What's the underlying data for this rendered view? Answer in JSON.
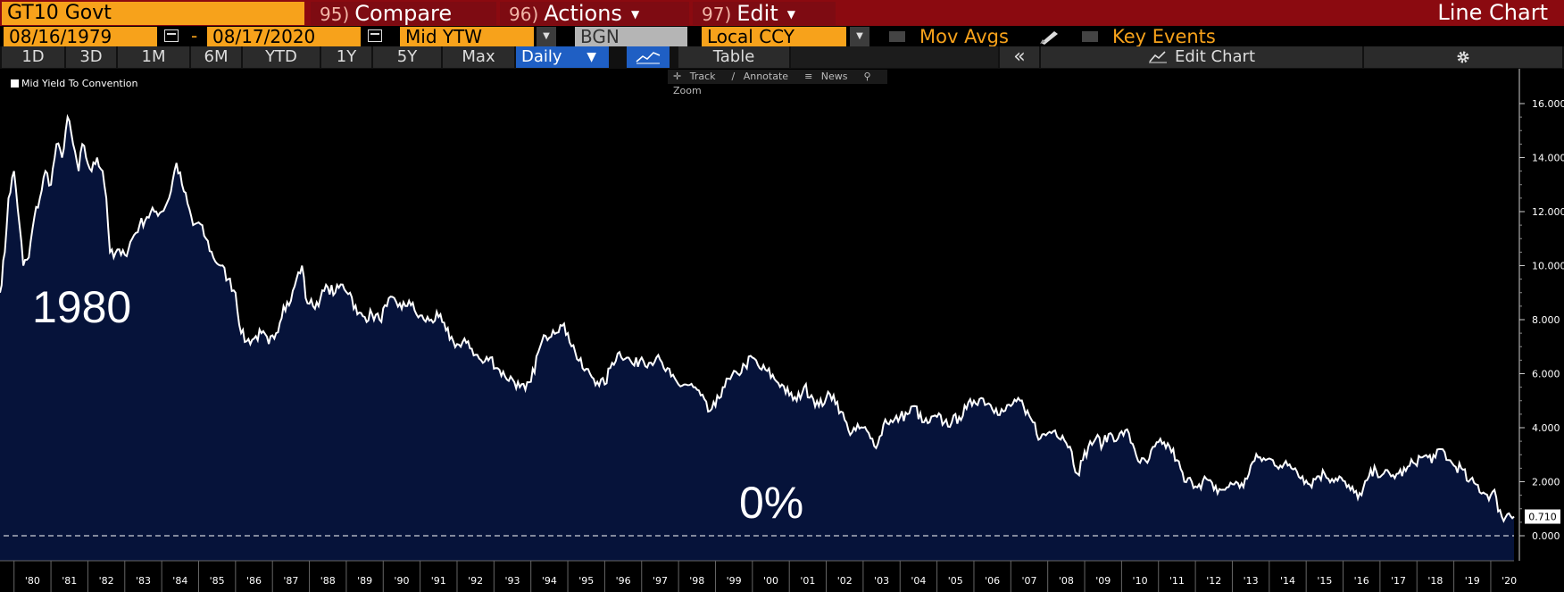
{
  "header": {
    "ticker": "GT10 Govt",
    "compare_num": "95)",
    "compare_label": "Compare",
    "actions_num": "96)",
    "actions_label": "Actions",
    "edit_num": "97)",
    "edit_label": "Edit",
    "chart_type": "Line Chart"
  },
  "settings": {
    "start_date": "08/16/1979",
    "date_sep": "-",
    "end_date": "08/17/2020",
    "field": "Mid YTW",
    "source": "BGN",
    "currency": "Local CCY",
    "mov_avgs": "Mov Avgs",
    "key_events": "Key Events"
  },
  "ranges": [
    "1D",
    "3D",
    "1M",
    "6M",
    "YTD",
    "1Y",
    "5Y",
    "Max"
  ],
  "periodicity": "Daily",
  "table_label": "Table",
  "collapse_icon": "«",
  "edit_chart_label": "Edit Chart",
  "tools": {
    "track": "Track",
    "annotate": "Annotate",
    "news": "News",
    "zoom": "Zoom"
  },
  "icons": {
    "calendar": "calendar-icon",
    "dropdown": "chevron-down-icon",
    "chart_style": "line-chart-icon",
    "gear": "gear-icon",
    "pencil": "pencil-icon"
  },
  "colors": {
    "orange": "#f7a21b",
    "header_red": "#8b0a10",
    "area_fill": "#06133a",
    "line": "#ffffff",
    "selected_blue": "#1f5fc4"
  },
  "overlay": {
    "year_text": "1980",
    "zero_text": "0%"
  },
  "chart_data": {
    "type": "area",
    "series_name": "Mid Yield To Convention",
    "xlabel": "",
    "ylabel": "",
    "x_range": [
      1979.62,
      2020.63
    ],
    "ylim": [
      -1.0,
      16.6
    ],
    "y_ticks": [
      "0.000",
      "2.000",
      "4.000",
      "6.000",
      "8.000",
      "10.000",
      "12.000",
      "14.000",
      "16.000"
    ],
    "x_ticks": [
      "'80",
      "'81",
      "'82",
      "'83",
      "'84",
      "'85",
      "'86",
      "'87",
      "'88",
      "'89",
      "'90",
      "'91",
      "'92",
      "'93",
      "'94",
      "'95",
      "'96",
      "'97",
      "'98",
      "'99",
      "'00",
      "'01",
      "'02",
      "'03",
      "'04",
      "'05",
      "'06",
      "'07",
      "'08",
      "'09",
      "'10",
      "'11",
      "'12",
      "'13",
      "'14",
      "'15",
      "'16",
      "'17",
      "'18",
      "'19",
      "'20"
    ],
    "last_value": "0.710",
    "reference_line": 0,
    "x": [
      1979.62,
      1979.75,
      1979.85,
      1980.0,
      1980.15,
      1980.25,
      1980.4,
      1980.55,
      1980.7,
      1980.85,
      1981.0,
      1981.15,
      1981.3,
      1981.45,
      1981.6,
      1981.75,
      1981.85,
      1981.95,
      1982.1,
      1982.25,
      1982.4,
      1982.5,
      1982.6,
      1982.7,
      1982.8,
      1982.9,
      1983.0,
      1983.2,
      1983.4,
      1983.6,
      1983.8,
      1984.0,
      1984.2,
      1984.4,
      1984.55,
      1984.7,
      1984.85,
      1985.0,
      1985.2,
      1985.4,
      1985.6,
      1985.8,
      1986.0,
      1986.15,
      1986.3,
      1986.5,
      1986.7,
      1986.9,
      1987.1,
      1987.3,
      1987.5,
      1987.65,
      1987.8,
      1987.9,
      1988.1,
      1988.3,
      1988.5,
      1988.7,
      1988.9,
      1989.1,
      1989.3,
      1989.5,
      1989.7,
      1989.9,
      1990.1,
      1990.3,
      1990.5,
      1990.7,
      1990.9,
      1991.1,
      1991.3,
      1991.5,
      1991.7,
      1991.9,
      1992.1,
      1992.3,
      1992.5,
      1992.7,
      1992.9,
      1993.1,
      1993.3,
      1993.5,
      1993.7,
      1993.85,
      1994.0,
      1994.2,
      1994.4,
      1994.6,
      1994.8,
      1995.0,
      1995.2,
      1995.4,
      1995.6,
      1995.8,
      1996.0,
      1996.2,
      1996.4,
      1996.6,
      1996.8,
      1997.0,
      1997.2,
      1997.4,
      1997.6,
      1997.8,
      1998.0,
      1998.2,
      1998.4,
      1998.6,
      1998.8,
      1999.0,
      1999.2,
      1999.4,
      1999.6,
      1999.8,
      2000.0,
      2000.2,
      2000.4,
      2000.6,
      2000.8,
      2001.0,
      2001.2,
      2001.4,
      2001.6,
      2001.8,
      2002.0,
      2002.2,
      2002.4,
      2002.6,
      2002.8,
      2003.0,
      2003.2,
      2003.4,
      2003.6,
      2003.8,
      2004.0,
      2004.2,
      2004.4,
      2004.6,
      2004.8,
      2005.0,
      2005.2,
      2005.4,
      2005.6,
      2005.8,
      2006.0,
      2006.2,
      2006.4,
      2006.6,
      2006.8,
      2007.0,
      2007.2,
      2007.4,
      2007.6,
      2007.8,
      2008.0,
      2008.2,
      2008.4,
      2008.6,
      2008.8,
      2008.95,
      2009.1,
      2009.3,
      2009.5,
      2009.7,
      2009.9,
      2010.1,
      2010.3,
      2010.5,
      2010.7,
      2010.9,
      2011.1,
      2011.3,
      2011.5,
      2011.7,
      2011.9,
      2012.1,
      2012.3,
      2012.5,
      2012.7,
      2012.9,
      2013.1,
      2013.3,
      2013.5,
      2013.7,
      2013.9,
      2014.1,
      2014.3,
      2014.5,
      2014.7,
      2014.9,
      2015.1,
      2015.3,
      2015.5,
      2015.7,
      2015.9,
      2016.1,
      2016.3,
      2016.5,
      2016.7,
      2016.9,
      2017.1,
      2017.3,
      2017.5,
      2017.7,
      2017.9,
      2018.1,
      2018.3,
      2018.5,
      2018.7,
      2018.85,
      2019.0,
      2019.2,
      2019.4,
      2019.6,
      2019.8,
      2020.0,
      2020.1,
      2020.2,
      2020.3,
      2020.45,
      2020.63
    ],
    "y": [
      9.0,
      10.5,
      12.5,
      13.5,
      11.5,
      10.0,
      10.3,
      11.8,
      12.5,
      13.5,
      13.0,
      14.5,
      14.0,
      15.5,
      14.5,
      13.5,
      14.5,
      14.0,
      13.5,
      14.0,
      13.5,
      12.5,
      10.5,
      10.3,
      10.6,
      10.4,
      10.4,
      11.0,
      11.5,
      11.8,
      12.0,
      12.0,
      12.5,
      13.8,
      13.0,
      12.3,
      11.5,
      11.6,
      11.0,
      10.3,
      10.0,
      9.5,
      9.0,
      7.5,
      7.2,
      7.3,
      7.5,
      7.1,
      7.5,
      8.5,
      8.7,
      9.5,
      10.0,
      8.8,
      8.5,
      8.8,
      9.2,
      9.0,
      9.3,
      9.0,
      8.2,
      8.1,
      8.2,
      8.0,
      8.5,
      8.8,
      8.4,
      8.7,
      8.2,
      8.0,
      8.0,
      8.1,
      7.6,
      7.2,
      7.0,
      7.2,
      6.7,
      6.4,
      6.6,
      6.2,
      5.9,
      5.8,
      5.5,
      5.4,
      5.7,
      6.8,
      7.4,
      7.6,
      7.8,
      7.5,
      6.8,
      6.2,
      6.0,
      5.7,
      5.6,
      6.4,
      6.8,
      6.6,
      6.3,
      6.6,
      6.4,
      6.6,
      6.2,
      5.9,
      5.6,
      5.6,
      5.5,
      5.2,
      4.6,
      4.8,
      5.5,
      5.8,
      6.0,
      6.3,
      6.6,
      6.2,
      6.1,
      5.8,
      5.6,
      5.2,
      5.0,
      5.5,
      5.2,
      4.8,
      5.1,
      5.2,
      4.6,
      3.9,
      3.9,
      4.0,
      3.6,
      3.4,
      4.3,
      4.2,
      4.4,
      4.5,
      4.8,
      4.2,
      4.2,
      4.4,
      4.2,
      4.2,
      4.4,
      4.7,
      5.0,
      5.1,
      4.9,
      4.7,
      4.6,
      4.8,
      5.1,
      4.5,
      4.2,
      3.6,
      3.8,
      3.9,
      3.7,
      3.3,
      2.3,
      2.8,
      3.3,
      3.6,
      3.4,
      3.8,
      3.6,
      3.9,
      3.4,
      2.7,
      2.7,
      3.3,
      3.4,
      3.3,
      2.8,
      2.0,
      2.0,
      1.9,
      2.1,
      1.7,
      1.7,
      1.8,
      2.0,
      1.8,
      2.6,
      2.9,
      2.8,
      2.8,
      2.6,
      2.6,
      2.5,
      2.2,
      1.9,
      2.2,
      2.3,
      2.1,
      2.2,
      1.8,
      1.6,
      1.5,
      2.2,
      2.4,
      2.3,
      2.2,
      2.3,
      2.4,
      2.7,
      2.9,
      2.9,
      2.9,
      3.2,
      2.8,
      2.6,
      2.5,
      2.0,
      1.9,
      1.6,
      1.5,
      1.7,
      0.9,
      0.7,
      0.8,
      0.71
    ]
  }
}
